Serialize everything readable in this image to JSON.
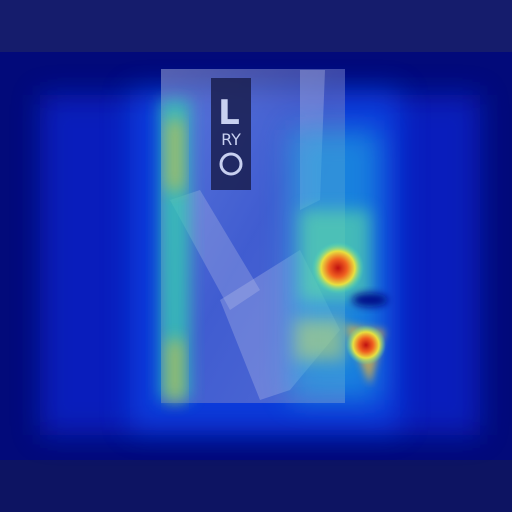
{
  "marker": {
    "letter": "L",
    "initials": "RY"
  }
}
